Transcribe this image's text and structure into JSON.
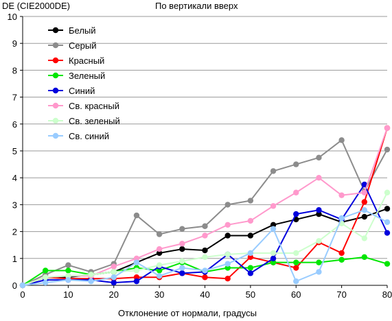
{
  "chart_data": {
    "type": "line",
    "title": "По вертикали вверх",
    "ylabel": "DE (CIE2000DE)",
    "xlabel": "Отклонение от нормали, градусы",
    "xlim": [
      0,
      80
    ],
    "ylim": [
      0,
      10
    ],
    "x_ticks": [
      0,
      10,
      20,
      30,
      40,
      50,
      60,
      70,
      80
    ],
    "y_ticks": [
      0,
      1,
      2,
      3,
      4,
      5,
      6,
      7,
      8,
      9,
      10
    ],
    "grid": "horizontal",
    "legend_position": "top-left",
    "x": [
      0,
      5,
      10,
      15,
      20,
      25,
      30,
      35,
      40,
      45,
      50,
      55,
      60,
      65,
      70,
      75,
      80
    ],
    "series": [
      {
        "name": "Белый",
        "color": "#000000",
        "values": [
          0,
          0.3,
          0.3,
          0.4,
          0.5,
          0.85,
          1.2,
          1.35,
          1.3,
          1.85,
          1.85,
          2.25,
          2.45,
          2.65,
          2.35,
          2.55,
          2.85
        ]
      },
      {
        "name": "Серый",
        "color": "#8c8c8c",
        "values": [
          0,
          0.4,
          0.75,
          0.5,
          0.8,
          2.6,
          1.9,
          2.1,
          2.2,
          3.0,
          3.15,
          4.25,
          4.5,
          4.75,
          5.4,
          3.5,
          5.05
        ]
      },
      {
        "name": "Красный",
        "color": "#ff0000",
        "values": [
          0,
          0.3,
          0.25,
          0.25,
          0.25,
          0.3,
          0.3,
          0.45,
          0.3,
          0.25,
          1.05,
          0.85,
          0.65,
          1.6,
          1.2,
          3.1,
          5.85
        ]
      },
      {
        "name": "Зеленый",
        "color": "#00e600",
        "values": [
          0,
          0.55,
          0.55,
          0.4,
          0.5,
          0.65,
          0.55,
          0.85,
          0.5,
          0.65,
          0.65,
          0.85,
          0.85,
          0.85,
          0.95,
          1.05,
          0.8
        ]
      },
      {
        "name": "Синий",
        "color": "#0000dd",
        "values": [
          0,
          0.2,
          0.2,
          0.2,
          0.1,
          0.15,
          0.7,
          0.45,
          0.5,
          1.15,
          0.45,
          1.0,
          2.65,
          2.8,
          2.45,
          3.75,
          1.95
        ]
      },
      {
        "name": "Св. красный",
        "color": "#ff99cc",
        "values": [
          0,
          0.3,
          0.35,
          0.35,
          0.7,
          1.0,
          1.35,
          1.55,
          1.85,
          2.25,
          2.4,
          2.95,
          3.45,
          4.0,
          3.35,
          3.45,
          5.85
        ]
      },
      {
        "name": "Св. зеленый",
        "color": "#ccffcc",
        "values": [
          0,
          0.3,
          0.35,
          0.4,
          0.5,
          0.55,
          0.75,
          0.9,
          1.05,
          1.15,
          1.2,
          1.2,
          1.2,
          1.65,
          2.3,
          1.75,
          3.45
        ]
      },
      {
        "name": "Св. синий",
        "color": "#99ccff",
        "values": [
          0,
          0.1,
          0.2,
          0.15,
          0.3,
          0.85,
          0.35,
          0.65,
          0.55,
          0.8,
          1.2,
          2.1,
          0.15,
          0.5,
          2.5,
          2.8,
          2.35
        ]
      }
    ]
  }
}
